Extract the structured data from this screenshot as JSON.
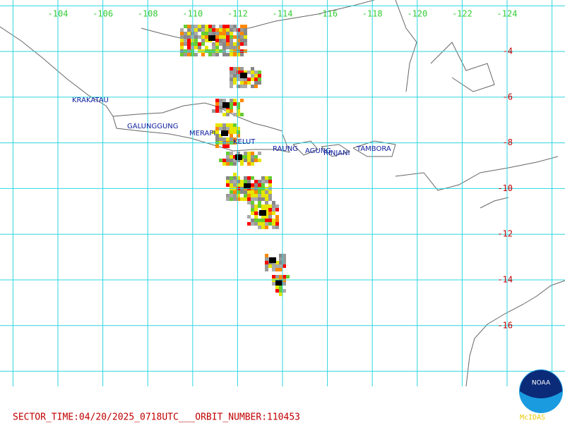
{
  "map": {
    "longitude_labels": [
      "-104",
      "-106",
      "-108",
      "-110",
      "-112",
      "-114",
      "-116",
      "-118",
      "-120",
      "-122",
      "-124"
    ],
    "latitude_labels": [
      "-4",
      "-6",
      "-8",
      "-10",
      "-12",
      "-14",
      "-16"
    ],
    "volcanoes": [
      "KRAKATAU",
      "GALUNGGUNG",
      "MERAPI",
      "KELUT",
      "RAUNG",
      "AGUNG",
      "RINJANI",
      "TAMBORA"
    ],
    "footer": "SECTOR_TIME:04/20/2025_0718UTC___ORBIT_NUMBER:110453",
    "logo": {
      "name": "NOAA",
      "caption": "McIDAS"
    }
  }
}
